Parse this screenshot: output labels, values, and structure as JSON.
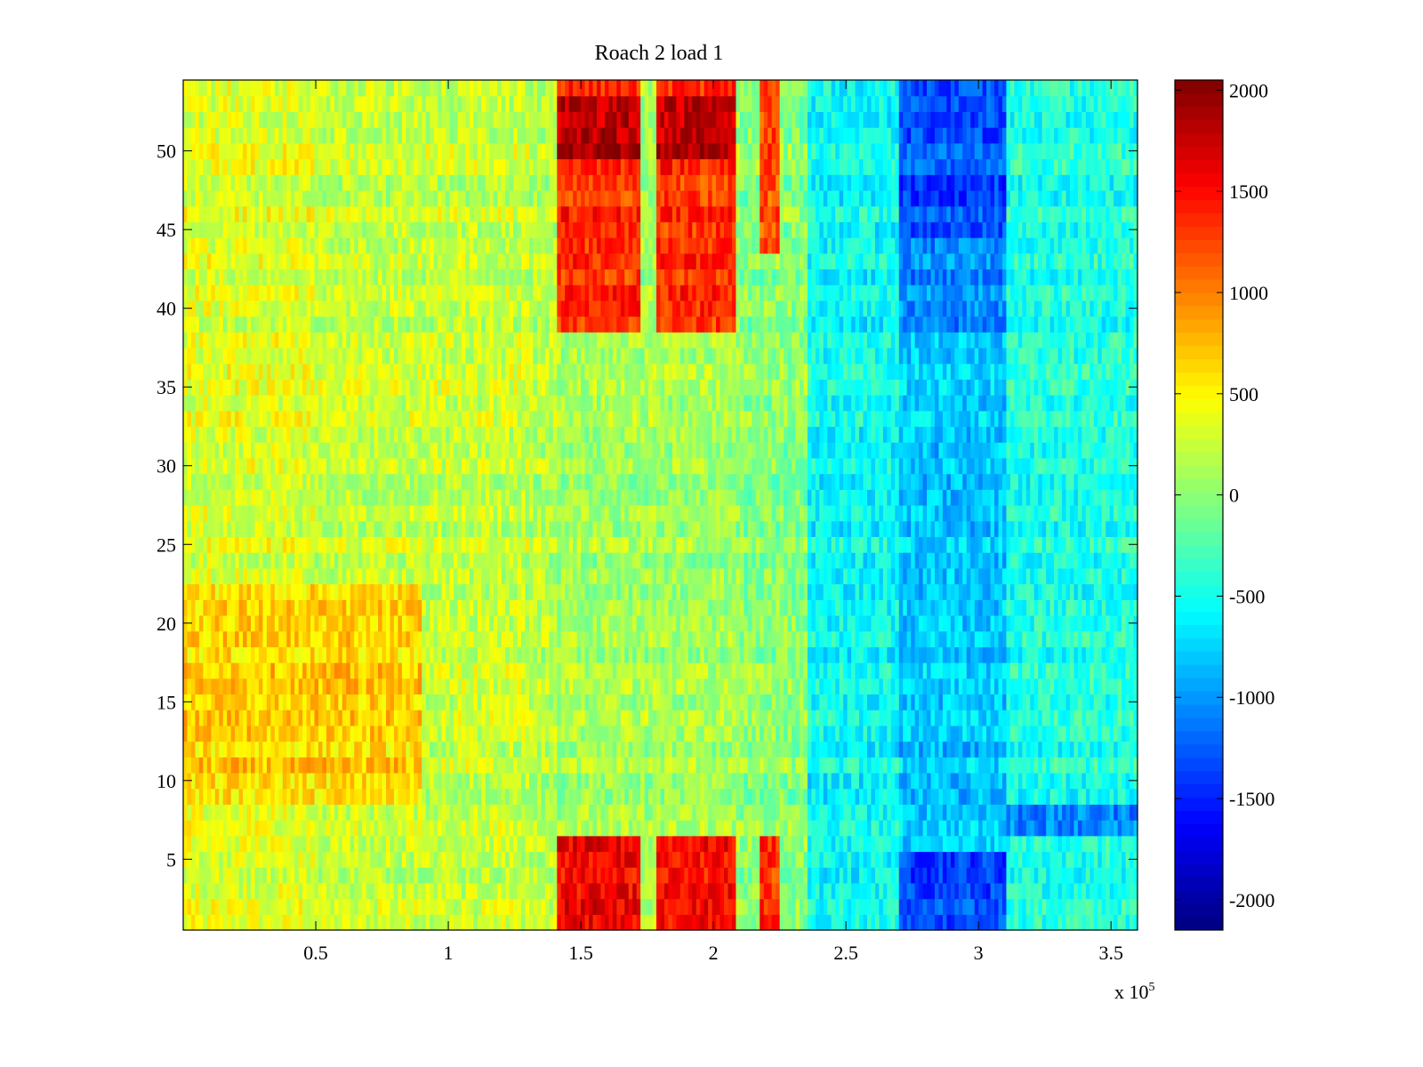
{
  "chart_data": {
    "type": "heatmap",
    "title": "Roach 2 load 1",
    "xlabel": "",
    "ylabel": "",
    "x_multiplier_label": {
      "base": "x 10",
      "exponent": "5"
    },
    "xlim": [
      0,
      3.6
    ],
    "ylim": [
      0.5,
      54.5
    ],
    "x_ticks": [
      0.5,
      1,
      1.5,
      2,
      2.5,
      3,
      3.5
    ],
    "x_tick_labels": [
      "0.5",
      "1",
      "1.5",
      "2",
      "2.5",
      "3",
      "3.5"
    ],
    "y_ticks": [
      5,
      10,
      15,
      20,
      25,
      30,
      35,
      40,
      45,
      50
    ],
    "y_tick_labels": [
      "5",
      "10",
      "15",
      "20",
      "25",
      "30",
      "35",
      "40",
      "45",
      "50"
    ],
    "rows": 54,
    "colormap": "jet",
    "colorbar": {
      "clim": [
        -2150,
        2050
      ],
      "ticks": [
        2000,
        1500,
        1000,
        500,
        0,
        -500,
        -1000,
        -1500,
        -2000
      ],
      "tick_labels": [
        "2000",
        "1500",
        "1000",
        "500",
        "0",
        "-500",
        "-1000",
        "-1500",
        "-2000"
      ]
    },
    "x_segments": [
      {
        "x0": 0.0,
        "x1": 0.5,
        "base": 350,
        "slope": 0
      },
      {
        "x0": 0.5,
        "x1": 1.3,
        "base": 250,
        "slope": 0
      },
      {
        "x0": 1.3,
        "x1": 1.41,
        "base": 200,
        "slope": 0
      },
      {
        "x0": 1.41,
        "x1": 2.1,
        "base": 100,
        "slope": 0
      },
      {
        "x0": 2.1,
        "x1": 2.35,
        "base": 0,
        "slope": 0
      },
      {
        "x0": 2.35,
        "x1": 2.7,
        "base": -550,
        "slope": 0
      },
      {
        "x0": 2.7,
        "x1": 3.1,
        "base": -800,
        "slope": 0
      },
      {
        "x0": 3.1,
        "x1": 3.6,
        "base": -450,
        "slope": 0
      }
    ],
    "hot_regions": [
      {
        "x": [
          1.41,
          1.73
        ],
        "y": [
          0.5,
          6.5
        ],
        "value": 1550
      },
      {
        "x": [
          1.79,
          2.09
        ],
        "y": [
          0.5,
          6.5
        ],
        "value": 1500
      },
      {
        "x": [
          2.17,
          2.25
        ],
        "y": [
          0.5,
          6.5
        ],
        "value": 1350
      },
      {
        "x": [
          1.41,
          1.73
        ],
        "y": [
          38.5,
          54.5
        ],
        "value": 1350
      },
      {
        "x": [
          1.79,
          2.09
        ],
        "y": [
          38.5,
          54.5
        ],
        "value": 1350
      },
      {
        "x": [
          2.17,
          2.25
        ],
        "y": [
          43.5,
          54.5
        ],
        "value": 1250
      },
      {
        "x": [
          1.41,
          1.73
        ],
        "y": [
          49.5,
          53.5
        ],
        "value": 1850
      },
      {
        "x": [
          1.79,
          2.09
        ],
        "y": [
          49.5,
          53.5
        ],
        "value": 1800
      },
      {
        "x": [
          2.7,
          3.1
        ],
        "y": [
          0.5,
          5.5
        ],
        "value": -1350
      },
      {
        "x": [
          2.7,
          3.1
        ],
        "y": [
          44.5,
          54.5
        ],
        "value": -1300
      },
      {
        "x": [
          2.7,
          3.1
        ],
        "y": [
          38.5,
          44.5
        ],
        "value": -1050
      },
      {
        "x": [
          3.1,
          3.6
        ],
        "y": [
          6.5,
          8.5
        ],
        "value": -1100
      },
      {
        "x": [
          0.0,
          0.9
        ],
        "y": [
          8.5,
          22.5
        ],
        "value": 650
      }
    ]
  }
}
